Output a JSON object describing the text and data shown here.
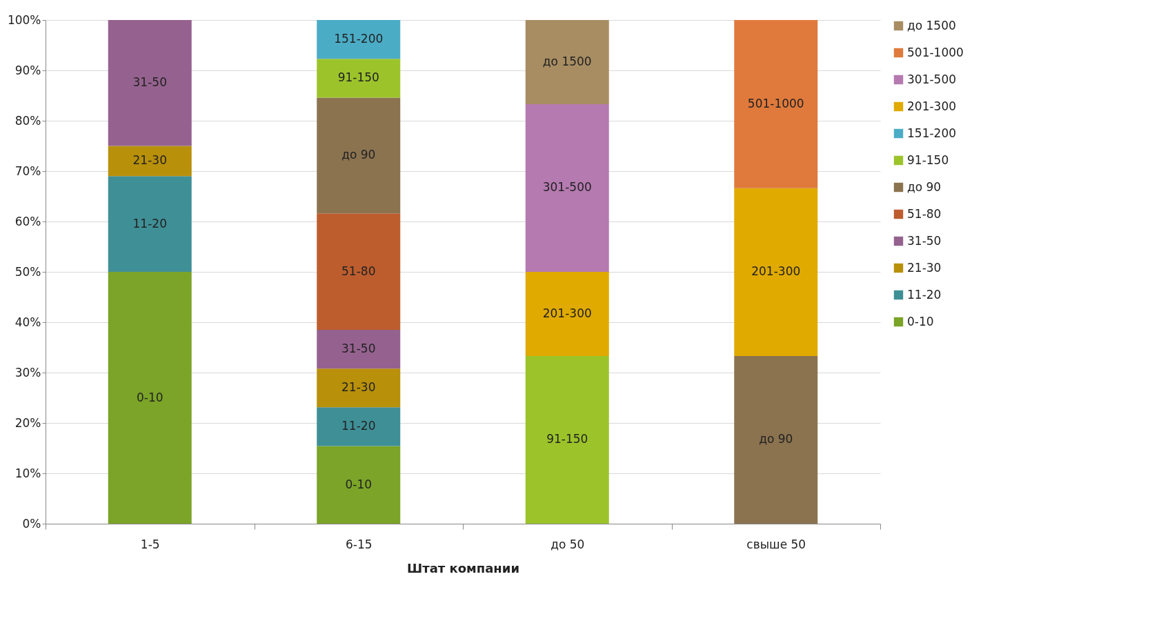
{
  "chart_data": {
    "type": "bar",
    "stacked": true,
    "xlabel": "Штат компании",
    "categories": [
      "1-5",
      "6-15",
      "до 50",
      "свыше 50"
    ],
    "series": [
      {
        "name": "0-10",
        "color": "#7ba428",
        "values": [
          50,
          15.4,
          null,
          null
        ]
      },
      {
        "name": "11-20",
        "color": "#3f8f96",
        "values": [
          19,
          7.7,
          null,
          null
        ]
      },
      {
        "name": "21-30",
        "color": "#b8900a",
        "values": [
          6,
          7.7,
          null,
          null
        ]
      },
      {
        "name": "31-50",
        "color": "#95628f",
        "values": [
          25,
          7.7,
          null,
          null
        ]
      },
      {
        "name": "51-80",
        "color": "#bd5d2e",
        "values": [
          null,
          23.1,
          null,
          null
        ]
      },
      {
        "name": "до 90",
        "color": "#8b7350",
        "values": [
          null,
          23.0,
          null,
          33.3
        ]
      },
      {
        "name": "91-150",
        "color": "#9cc42a",
        "values": [
          null,
          7.7,
          33.3,
          null
        ]
      },
      {
        "name": "151-200",
        "color": "#4bacc6",
        "values": [
          null,
          7.7,
          null,
          null
        ]
      },
      {
        "name": "201-300",
        "color": "#e0aa00",
        "values": [
          null,
          null,
          16.7,
          33.3
        ]
      },
      {
        "name": "301-500",
        "color": "#b57ab0",
        "values": [
          null,
          null,
          33.3,
          null
        ]
      },
      {
        "name": "501-1000",
        "color": "#e07a3c",
        "values": [
          null,
          null,
          null,
          33.4
        ]
      },
      {
        "name": "до 1500",
        "color": "#a88d62",
        "values": [
          null,
          null,
          16.7,
          null
        ]
      }
    ],
    "ylim": [
      0,
      100
    ],
    "yticks": [
      {
        "value": 0,
        "label": "0%"
      },
      {
        "value": 10,
        "label": "10%"
      },
      {
        "value": 20,
        "label": "20%"
      },
      {
        "value": 30,
        "label": "30%"
      },
      {
        "value": 40,
        "label": "40%"
      },
      {
        "value": 50,
        "label": "50%"
      },
      {
        "value": 60,
        "label": "60%"
      },
      {
        "value": 70,
        "label": "70%"
      },
      {
        "value": 80,
        "label": "80%"
      },
      {
        "value": 90,
        "label": "90%"
      },
      {
        "value": 100,
        "label": "100%"
      }
    ],
    "grid": "y",
    "legend": "right"
  }
}
